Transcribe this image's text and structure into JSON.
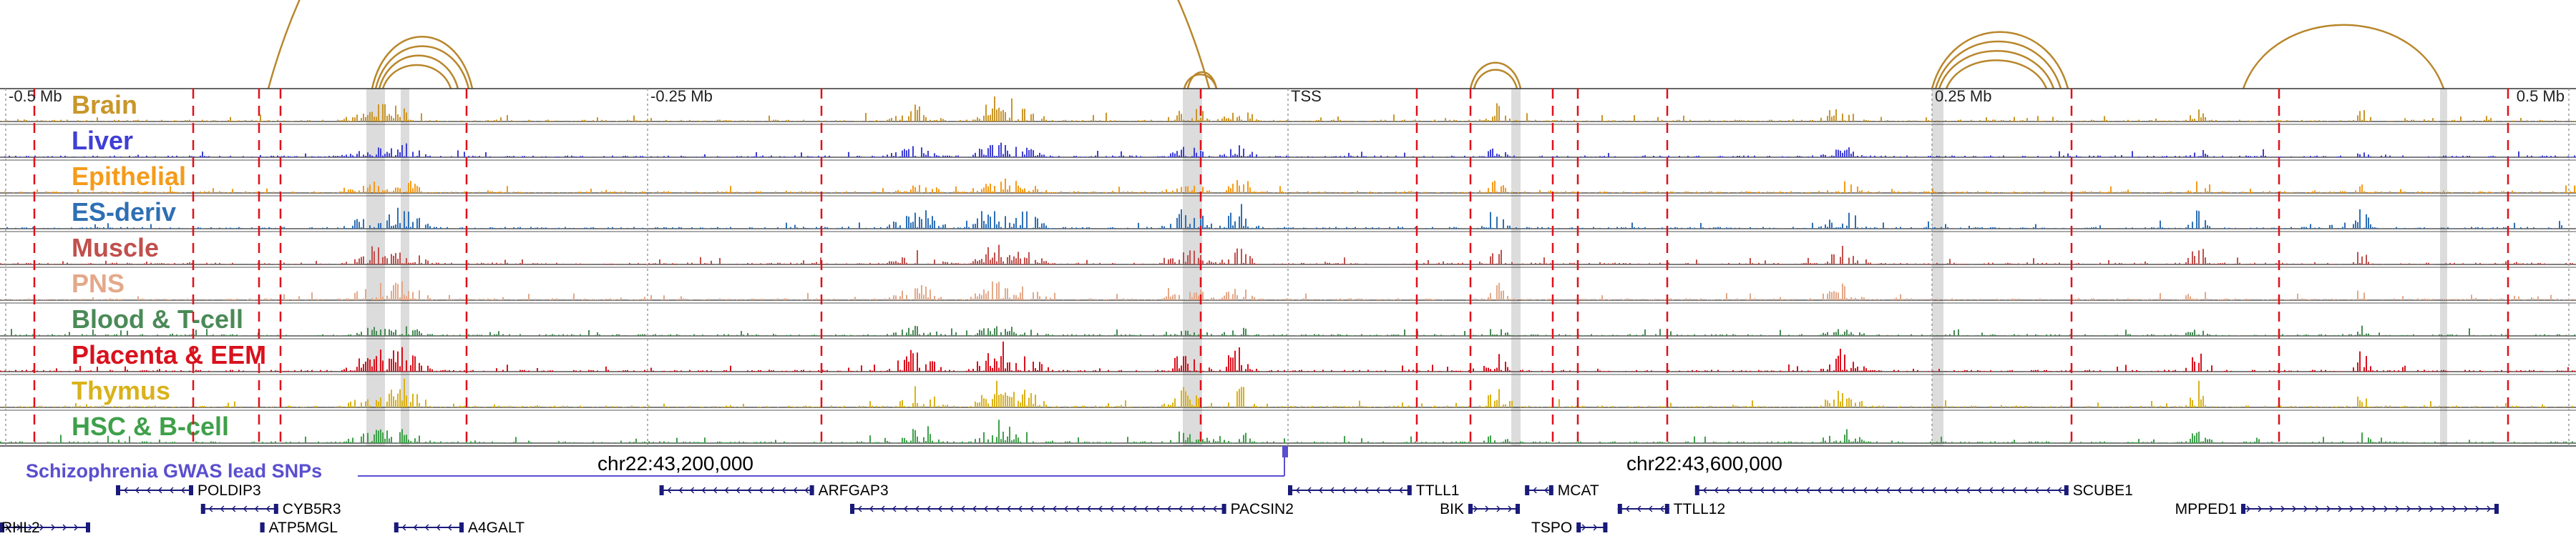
{
  "scale": {
    "ticks": [
      {
        "label": "-0.5 Mb",
        "pos": -0.5
      },
      {
        "label": "-0.25 Mb",
        "pos": -0.25
      },
      {
        "label": "TSS",
        "pos": 0
      },
      {
        "label": "0.25 Mb",
        "pos": 0.25
      },
      {
        "label": "0.5 Mb",
        "pos": 0.5
      }
    ]
  },
  "coordinates": [
    {
      "label": "chr22:43,200,000",
      "pos": 0.3
    },
    {
      "label": "chr22:43,600,000",
      "pos": 0.69
    }
  ],
  "tracks": [
    {
      "name": "Brain",
      "color": "#c9962a",
      "seed": 11,
      "label_color": "#c9962a"
    },
    {
      "name": "Liver",
      "color": "#3f3fd6",
      "seed": 23,
      "label_color": "#3f3fd6"
    },
    {
      "name": "Epithelial",
      "color": "#f59b1a",
      "seed": 37,
      "label_color": "#f59b1a"
    },
    {
      "name": "ES-deriv",
      "color": "#2e6fb5",
      "seed": 41,
      "label_color": "#2e6fb5"
    },
    {
      "name": "Muscle",
      "color": "#c0504d",
      "seed": 53,
      "label_color": "#c0504d"
    },
    {
      "name": "PNS",
      "color": "#e3a98a",
      "seed": 67,
      "label_color": "#e3a98a"
    },
    {
      "name": "Blood & T-cell",
      "color": "#4a8a57",
      "seed": 71,
      "label_color": "#4a8a57"
    },
    {
      "name": "Placenta & EEM",
      "color": "#d9111d",
      "seed": 83,
      "label_color": "#d9111d"
    },
    {
      "name": "Thymus",
      "color": "#d9b21a",
      "seed": 97,
      "label_color": "#d9b21a"
    },
    {
      "name": "HSC & B-cell",
      "color": "#3fa04a",
      "seed": 101,
      "label_color": "#3fa04a"
    }
  ],
  "gwas": {
    "label": "Schizophrenia GWAS lead SNPs",
    "color": "#5a4fcf"
  },
  "genes": [
    {
      "name": "POLDIP3",
      "start": 0.045,
      "end": 0.075,
      "row": 0,
      "strand": "-",
      "label_side": "right"
    },
    {
      "name": "CYB5R3",
      "start": 0.078,
      "end": 0.108,
      "row": 1,
      "strand": "-",
      "label_side": "right"
    },
    {
      "name": "ATP5MGL",
      "start": 0.101,
      "end": 0.101,
      "row": 2,
      "strand": "+",
      "label_side": "right"
    },
    {
      "name": "A4GALT",
      "start": 0.153,
      "end": 0.18,
      "row": 2,
      "strand": "-",
      "label_side": "right"
    },
    {
      "name": "ARFGAP3",
      "start": 0.256,
      "end": 0.316,
      "row": 0,
      "strand": "-",
      "label_side": "right"
    },
    {
      "name": "PACSIN2",
      "start": 0.33,
      "end": 0.476,
      "row": 1,
      "strand": "-",
      "label_side": "right"
    },
    {
      "name": "TTLL1",
      "start": 0.5,
      "end": 0.548,
      "row": 0,
      "strand": "-",
      "label_side": "right"
    },
    {
      "name": "BIK",
      "start": 0.57,
      "end": 0.59,
      "row": 1,
      "strand": "+",
      "label_side": "left"
    },
    {
      "name": "MCAT",
      "start": 0.592,
      "end": 0.603,
      "row": 0,
      "strand": "-",
      "label_side": "right"
    },
    {
      "name": "TSPO",
      "start": 0.612,
      "end": 0.624,
      "row": 2,
      "strand": "+",
      "label_side": "left"
    },
    {
      "name": "TTLL12",
      "start": 0.628,
      "end": 0.648,
      "row": 1,
      "strand": "-",
      "label_side": "right"
    },
    {
      "name": "SCUBE1",
      "start": 0.658,
      "end": 0.803,
      "row": 0,
      "strand": "-",
      "label_side": "right"
    },
    {
      "name": "MPPED1",
      "start": 0.87,
      "end": 0.97,
      "row": 1,
      "strand": "+",
      "label_side": "left"
    },
    {
      "name": "RHL2",
      "start": 0.0,
      "end": 0.035,
      "row": 2,
      "strand": "+",
      "label_side": "left"
    }
  ],
  "colors": {
    "grid_red": "#e0101a",
    "highlight": "#d6d6d6",
    "loop": "#b8862b",
    "frame": "#333333",
    "gene": "#1a1a7a"
  }
}
